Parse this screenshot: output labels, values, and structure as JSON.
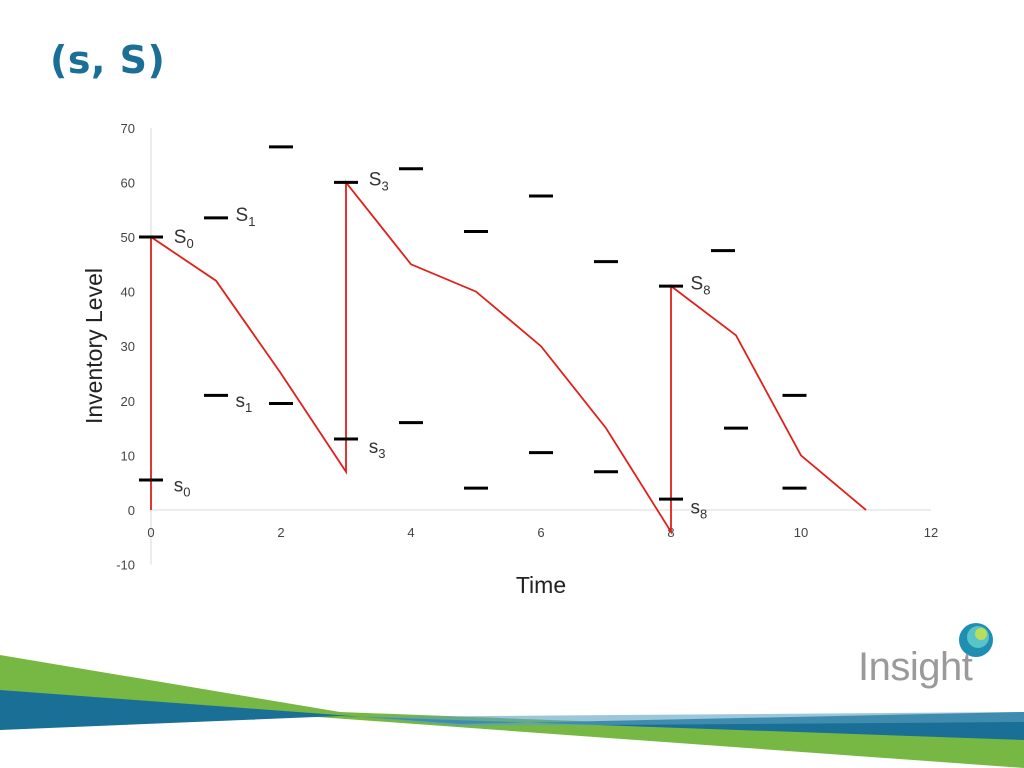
{
  "slide": {
    "title": "(s, S)",
    "logo_text": "Insight"
  },
  "colors": {
    "title": "#1a6f96",
    "line": "#e0201b",
    "marker": "#000000",
    "band_green": "#76b843",
    "band_blue": "#1a6f96"
  },
  "chart_data": {
    "type": "line",
    "title": "",
    "xlabel": "Time",
    "ylabel": "Inventory Level",
    "xlim": [
      0,
      12
    ],
    "ylim": [
      -10,
      70
    ],
    "x_ticks": [
      0,
      2,
      4,
      6,
      8,
      10,
      12
    ],
    "y_ticks": [
      -10,
      0,
      10,
      20,
      30,
      40,
      50,
      60,
      70
    ],
    "grid": false,
    "legend": "none",
    "series": [
      {
        "values": [
          [
            0,
            0
          ],
          [
            0,
            50
          ],
          [
            1,
            42
          ],
          [
            2,
            25
          ],
          [
            3,
            7
          ],
          [
            3,
            60
          ],
          [
            4,
            45
          ],
          [
            5,
            40
          ],
          [
            6,
            30
          ],
          [
            7,
            15
          ],
          [
            8,
            -4
          ],
          [
            8,
            41
          ],
          [
            9,
            32
          ],
          [
            10,
            10
          ],
          [
            11,
            0
          ]
        ]
      }
    ],
    "upper_levels": [
      [
        0,
        50
      ],
      [
        1.0,
        53.5
      ],
      [
        2.0,
        66.5
      ],
      [
        3,
        60
      ],
      [
        4.0,
        62.5
      ],
      [
        5.0,
        51
      ],
      [
        6.0,
        57.5
      ],
      [
        7.0,
        45.5
      ],
      [
        8,
        41
      ],
      [
        8.8,
        47.5
      ]
    ],
    "lower_levels": [
      [
        0,
        5.5
      ],
      [
        1.0,
        21
      ],
      [
        2.0,
        19.5
      ],
      [
        3,
        13
      ],
      [
        4.0,
        16
      ],
      [
        5.0,
        4
      ],
      [
        6.0,
        10.5
      ],
      [
        7.0,
        7
      ],
      [
        8,
        2
      ],
      [
        9.0,
        15
      ],
      [
        9.9,
        21
      ],
      [
        9.9,
        4
      ]
    ],
    "annotations": [
      {
        "base": "S",
        "sub": "0",
        "x": 0.35,
        "y": 50
      },
      {
        "base": "S",
        "sub": "1",
        "x": 1.3,
        "y": 54
      },
      {
        "base": "S",
        "sub": "3",
        "x": 3.35,
        "y": 60.5
      },
      {
        "base": "S",
        "sub": "8",
        "x": 8.3,
        "y": 41.5
      },
      {
        "base": "s",
        "sub": "0",
        "x": 0.35,
        "y": 4.5
      },
      {
        "base": "s",
        "sub": "1",
        "x": 1.3,
        "y": 20
      },
      {
        "base": "s",
        "sub": "3",
        "x": 3.35,
        "y": 11.5
      },
      {
        "base": "s",
        "sub": "8",
        "x": 8.3,
        "y": 0.5
      }
    ]
  }
}
